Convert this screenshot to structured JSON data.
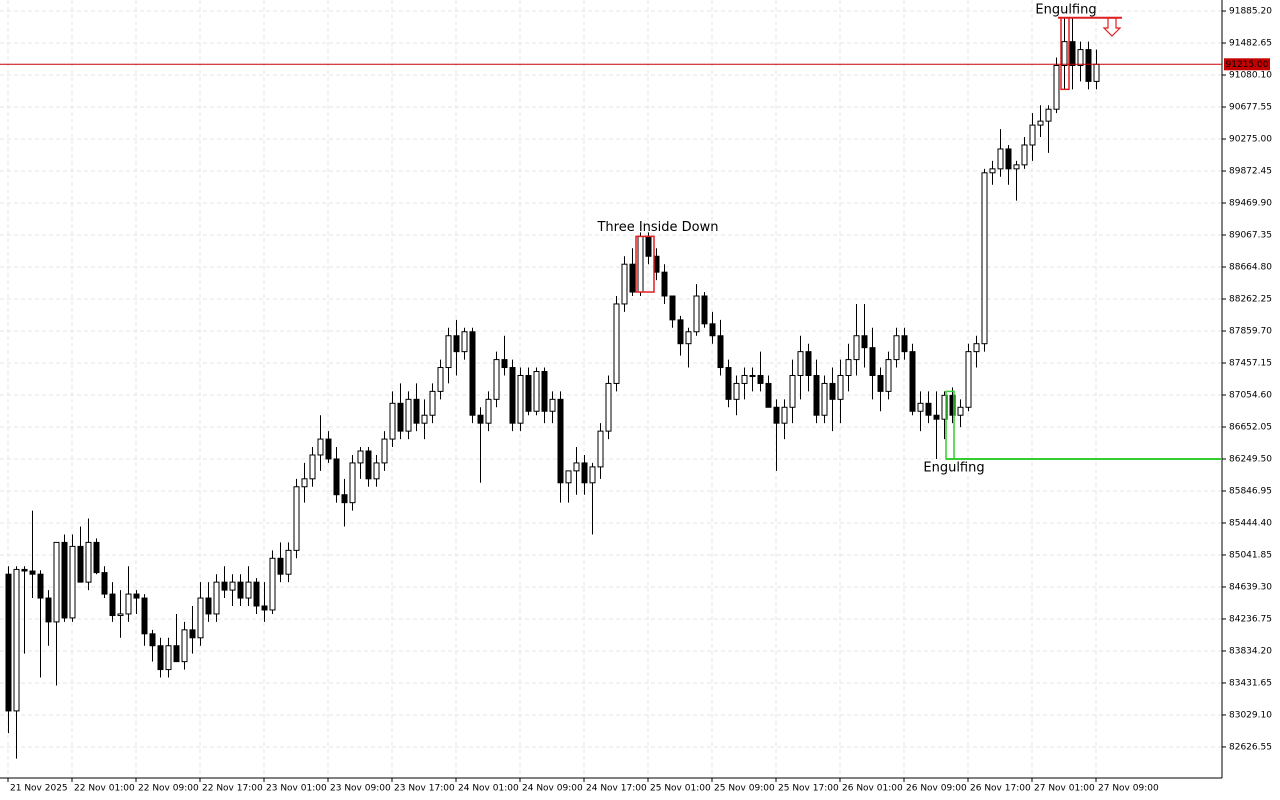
{
  "chart_data": {
    "type": "candlestick",
    "ylim": [
      82236,
      92024
    ],
    "yticks": [
      {
        "value": 91885.2,
        "label": "91885.20"
      },
      {
        "value": 91482.65,
        "label": "91482.65"
      },
      {
        "value": 91080.1,
        "label": "91080.10"
      },
      {
        "value": 90677.55,
        "label": "90677.55"
      },
      {
        "value": 90275,
        "label": "90275.00"
      },
      {
        "value": 89872.45,
        "label": "89872.45"
      },
      {
        "value": 89469.9,
        "label": "89469.90"
      },
      {
        "value": 89067.35,
        "label": "89067.35"
      },
      {
        "value": 88664.8,
        "label": "88664.80"
      },
      {
        "value": 88262.25,
        "label": "88262.25"
      },
      {
        "value": 87859.7,
        "label": "87859.70"
      },
      {
        "value": 87457.15,
        "label": "87457.15"
      },
      {
        "value": 87054.6,
        "label": "87054.60"
      },
      {
        "value": 86652.05,
        "label": "86652.05"
      },
      {
        "value": 86249.5,
        "label": "86249.50"
      },
      {
        "value": 85846.95,
        "label": "85846.95"
      },
      {
        "value": 85444.4,
        "label": "85444.40"
      },
      {
        "value": 85041.85,
        "label": "85041.85"
      },
      {
        "value": 84639.3,
        "label": "84639.30"
      },
      {
        "value": 84236.75,
        "label": "84236.75"
      },
      {
        "value": 83834.2,
        "label": "83834.20"
      },
      {
        "value": 83431.65,
        "label": "83431.65"
      },
      {
        "value": 83029.1,
        "label": "83029.10"
      },
      {
        "value": 82626.55,
        "label": "82626.55"
      }
    ],
    "xtick_labels": [
      "21 Nov 2025",
      "22 Nov 01:00",
      "22 Nov 09:00",
      "22 Nov 17:00",
      "23 Nov 01:00",
      "23 Nov 09:00",
      "23 Nov 17:00",
      "24 Nov 01:00",
      "24 Nov 09:00",
      "24 Nov 17:00",
      "25 Nov 01:00",
      "25 Nov 09:00",
      "25 Nov 17:00",
      "26 Nov 01:00",
      "26 Nov 09:00",
      "26 Nov 17:00",
      "27 Nov 01:00",
      "27 Nov 09:00"
    ],
    "grid": true,
    "bull_color": "#ffffff",
    "bear_color": "#000000",
    "open": [
      84800,
      83080,
      84860,
      84840,
      84800,
      84500,
      84200,
      85200,
      84250,
      85150,
      84700,
      85200,
      84820,
      84550,
      84280,
      84300,
      84550,
      84500,
      84050,
      83900,
      83600,
      83900,
      83700,
      84100,
      84000,
      84500,
      84300,
      84700,
      84600,
      84700,
      84500,
      84700,
      84400,
      84350,
      85000,
      84800,
      85100,
      85900,
      86000,
      86300,
      86500,
      86250,
      85800,
      85700,
      86200,
      86350,
      86000,
      86200,
      86500,
      86950,
      86600,
      87000,
      86700,
      86800,
      87100,
      87400,
      87800,
      87600,
      87850,
      86800,
      86700,
      87000,
      87500,
      87400,
      86700,
      87300,
      86850,
      87350,
      86850,
      87000,
      85950,
      86100,
      86200,
      85950,
      86150,
      86600,
      87200,
      88200,
      88700,
      88350,
      89050,
      88800,
      88600,
      88300,
      88000,
      87700,
      87850,
      88300,
      87950,
      87800,
      87400,
      87000,
      87200,
      87300,
      87300,
      87200,
      86900,
      86700,
      86900,
      87300,
      87600,
      87300,
      86800,
      87200,
      87000,
      87300,
      87500,
      87800,
      87650,
      87300,
      87100,
      87500,
      87800,
      87600,
      86850,
      86950,
      86800,
      86750,
      87050,
      86800,
      86900,
      87600,
      87700,
      89850,
      89900,
      90150,
      89900,
      89950,
      90200,
      90450,
      90500,
      90650,
      91200,
      91500,
      91200,
      91400,
      91000
    ],
    "high": [
      84900,
      84900,
      84900,
      85600,
      84850,
      84600,
      85200,
      85300,
      85300,
      85400,
      85500,
      85250,
      84900,
      84700,
      84600,
      84900,
      84600,
      84550,
      84100,
      84000,
      84000,
      84300,
      84200,
      84400,
      84700,
      84700,
      84800,
      84900,
      84800,
      84800,
      84900,
      84750,
      84700,
      85100,
      85200,
      85200,
      86000,
      86200,
      86400,
      86800,
      86600,
      86400,
      86000,
      86300,
      86400,
      86400,
      86300,
      86600,
      87100,
      87200,
      87100,
      87200,
      87000,
      87200,
      87500,
      87900,
      88000,
      87900,
      87900,
      86900,
      87100,
      87600,
      87800,
      87500,
      87400,
      87400,
      87400,
      87400,
      87100,
      87100,
      86100,
      86400,
      86300,
      86200,
      86700,
      87300,
      88300,
      88800,
      88900,
      89100,
      89100,
      88900,
      88700,
      88300,
      88050,
      87900,
      88450,
      88350,
      88100,
      88000,
      87500,
      87300,
      87400,
      87400,
      87600,
      87300,
      87000,
      87000,
      87500,
      87800,
      87700,
      87500,
      87300,
      87400,
      87500,
      87700,
      88200,
      88200,
      87900,
      87400,
      87600,
      87900,
      87900,
      87700,
      87100,
      87100,
      87100,
      87100,
      87150,
      87000,
      87700,
      87800,
      89900,
      90000,
      90400,
      90200,
      90000,
      90300,
      90600,
      90700,
      90700,
      91300,
      91800,
      91800,
      91500,
      91500,
      91400
    ],
    "low": [
      82800,
      82480,
      83800,
      84500,
      83500,
      83900,
      83400,
      84200,
      84200,
      84700,
      84600,
      84800,
      84500,
      84200,
      84000,
      84200,
      84300,
      83900,
      83700,
      83500,
      83500,
      83700,
      83600,
      83800,
      83900,
      84200,
      84200,
      84500,
      84400,
      84400,
      84400,
      84300,
      84200,
      84300,
      84700,
      84700,
      85000,
      85700,
      85900,
      86100,
      86200,
      85700,
      85400,
      85600,
      86000,
      85900,
      85900,
      86100,
      86400,
      86500,
      86500,
      86600,
      86500,
      86700,
      87000,
      87200,
      87300,
      87500,
      86700,
      85950,
      86600,
      86900,
      87300,
      86600,
      86600,
      86800,
      86800,
      86700,
      86700,
      85700,
      85700,
      85800,
      85800,
      85300,
      86000,
      86500,
      87100,
      88100,
      88300,
      88300,
      88700,
      88500,
      88200,
      87900,
      87550,
      87400,
      87800,
      87900,
      87700,
      87300,
      86900,
      86800,
      87000,
      87100,
      87100,
      86900,
      86100,
      86500,
      86700,
      87000,
      87100,
      86700,
      86700,
      86600,
      86700,
      87100,
      87300,
      87400,
      87000,
      86850,
      87000,
      87400,
      87500,
      86800,
      86600,
      86700,
      86250,
      86500,
      86700,
      86650,
      86850,
      87400,
      87600,
      89700,
      89800,
      89700,
      89500,
      89900,
      90000,
      90300,
      90100,
      90600,
      90900,
      90900,
      91000,
      90900,
      90900
    ],
    "close": [
      83080,
      84860,
      84840,
      84800,
      84500,
      84200,
      85200,
      84250,
      85150,
      84700,
      85200,
      84820,
      84550,
      84280,
      84300,
      84550,
      84500,
      84050,
      83900,
      83600,
      83900,
      83700,
      84100,
      84000,
      84500,
      84300,
      84700,
      84600,
      84700,
      84500,
      84700,
      84400,
      84350,
      85000,
      84800,
      85100,
      85900,
      86000,
      86300,
      86500,
      86250,
      85800,
      85700,
      86200,
      86350,
      86000,
      86200,
      86500,
      86950,
      86600,
      87000,
      86700,
      86800,
      87100,
      87400,
      87800,
      87600,
      87850,
      86800,
      86700,
      87000,
      87500,
      87400,
      86700,
      87300,
      86850,
      87350,
      86850,
      87000,
      85950,
      86100,
      86200,
      85950,
      86150,
      86600,
      87200,
      88200,
      88700,
      88350,
      89050,
      88800,
      88600,
      88300,
      88000,
      87700,
      87850,
      88300,
      87950,
      87800,
      87400,
      87000,
      87200,
      87300,
      87300,
      87200,
      86900,
      86700,
      86900,
      87300,
      87600,
      87300,
      86800,
      87200,
      87000,
      87300,
      87500,
      87800,
      87650,
      87300,
      87100,
      87500,
      87800,
      87600,
      86850,
      86950,
      86800,
      86750,
      87050,
      86800,
      86900,
      87600,
      87700,
      89850,
      89900,
      90150,
      89900,
      89950,
      90200,
      90450,
      90500,
      90650,
      91200,
      91500,
      91200,
      91400,
      91000,
      91215
    ],
    "current_price": 91215,
    "current_price_label": "91215.00",
    "current_price_color": "#c40000",
    "patterns": [
      {
        "label": "Three Inside Down",
        "color": "#e02020"
      },
      {
        "label": "Engulfing",
        "color": "#e02020",
        "level": 91800
      },
      {
        "label": "Engulfing",
        "color": "#33cc33",
        "level": 86250
      }
    ]
  }
}
